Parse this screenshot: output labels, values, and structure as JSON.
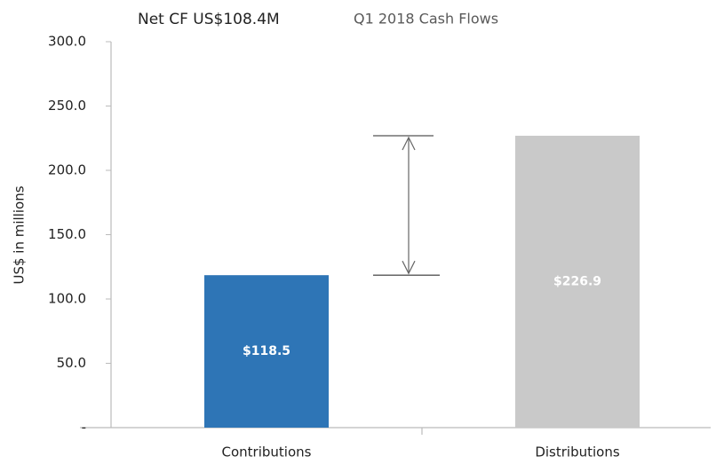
{
  "chart_data": {
    "type": "bar",
    "title": "Q1 2018 Cash Flows",
    "annotation": "Net CF US$108.4M",
    "y_label": "US$ in millions",
    "categories": [
      "Contributions",
      "Distributions"
    ],
    "values": [
      118.5,
      226.9
    ],
    "value_labels": [
      "$118.5",
      "$226.9"
    ],
    "colors": [
      "#2e75b6",
      "#c9c9c9"
    ],
    "ylim": [
      0,
      300
    ],
    "yticks": [
      {
        "value": 0,
        "label": "-"
      },
      {
        "value": 50,
        "label": "50.0"
      },
      {
        "value": 100,
        "label": "100.0"
      },
      {
        "value": 150,
        "label": "150.0"
      },
      {
        "value": 200,
        "label": "200.0"
      },
      {
        "value": 250,
        "label": "250.0"
      },
      {
        "value": 300,
        "label": "300.0"
      }
    ],
    "grid": false
  }
}
